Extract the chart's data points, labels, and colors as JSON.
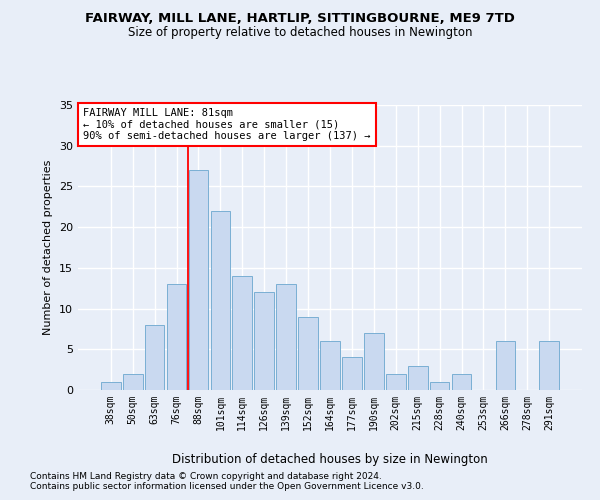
{
  "title1": "FAIRWAY, MILL LANE, HARTLIP, SITTINGBOURNE, ME9 7TD",
  "title2": "Size of property relative to detached houses in Newington",
  "xlabel": "Distribution of detached houses by size in Newington",
  "ylabel": "Number of detached properties",
  "categories": [
    "38sqm",
    "50sqm",
    "63sqm",
    "76sqm",
    "88sqm",
    "101sqm",
    "114sqm",
    "126sqm",
    "139sqm",
    "152sqm",
    "164sqm",
    "177sqm",
    "190sqm",
    "202sqm",
    "215sqm",
    "228sqm",
    "240sqm",
    "253sqm",
    "266sqm",
    "278sqm",
    "291sqm"
  ],
  "values": [
    1,
    2,
    8,
    13,
    27,
    22,
    14,
    12,
    13,
    9,
    6,
    4,
    7,
    2,
    3,
    1,
    2,
    0,
    6,
    0,
    6
  ],
  "bar_color": "#c9d9f0",
  "bar_edge_color": "#7aafd4",
  "vline_color": "red",
  "annotation_text": "FAIRWAY MILL LANE: 81sqm\n← 10% of detached houses are smaller (15)\n90% of semi-detached houses are larger (137) →",
  "annotation_box_color": "white",
  "annotation_box_edge": "red",
  "ylim": [
    0,
    35
  ],
  "yticks": [
    0,
    5,
    10,
    15,
    20,
    25,
    30,
    35
  ],
  "footnote1": "Contains HM Land Registry data © Crown copyright and database right 2024.",
  "footnote2": "Contains public sector information licensed under the Open Government Licence v3.0.",
  "bg_color": "#e8eef8",
  "grid_color": "white"
}
